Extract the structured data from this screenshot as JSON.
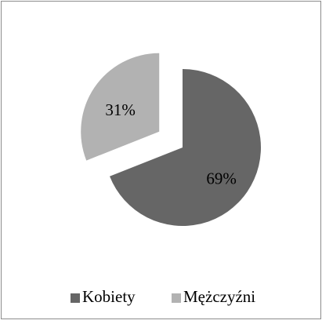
{
  "chart_data": {
    "type": "pie",
    "categories": [
      "Kobiety",
      "Mężczyźni"
    ],
    "values": [
      69,
      31
    ],
    "value_labels": [
      "69%",
      "31%"
    ],
    "colors": [
      "#666666",
      "#b2b2b2"
    ],
    "explode": [
      false,
      true
    ],
    "legend": "bottom"
  }
}
